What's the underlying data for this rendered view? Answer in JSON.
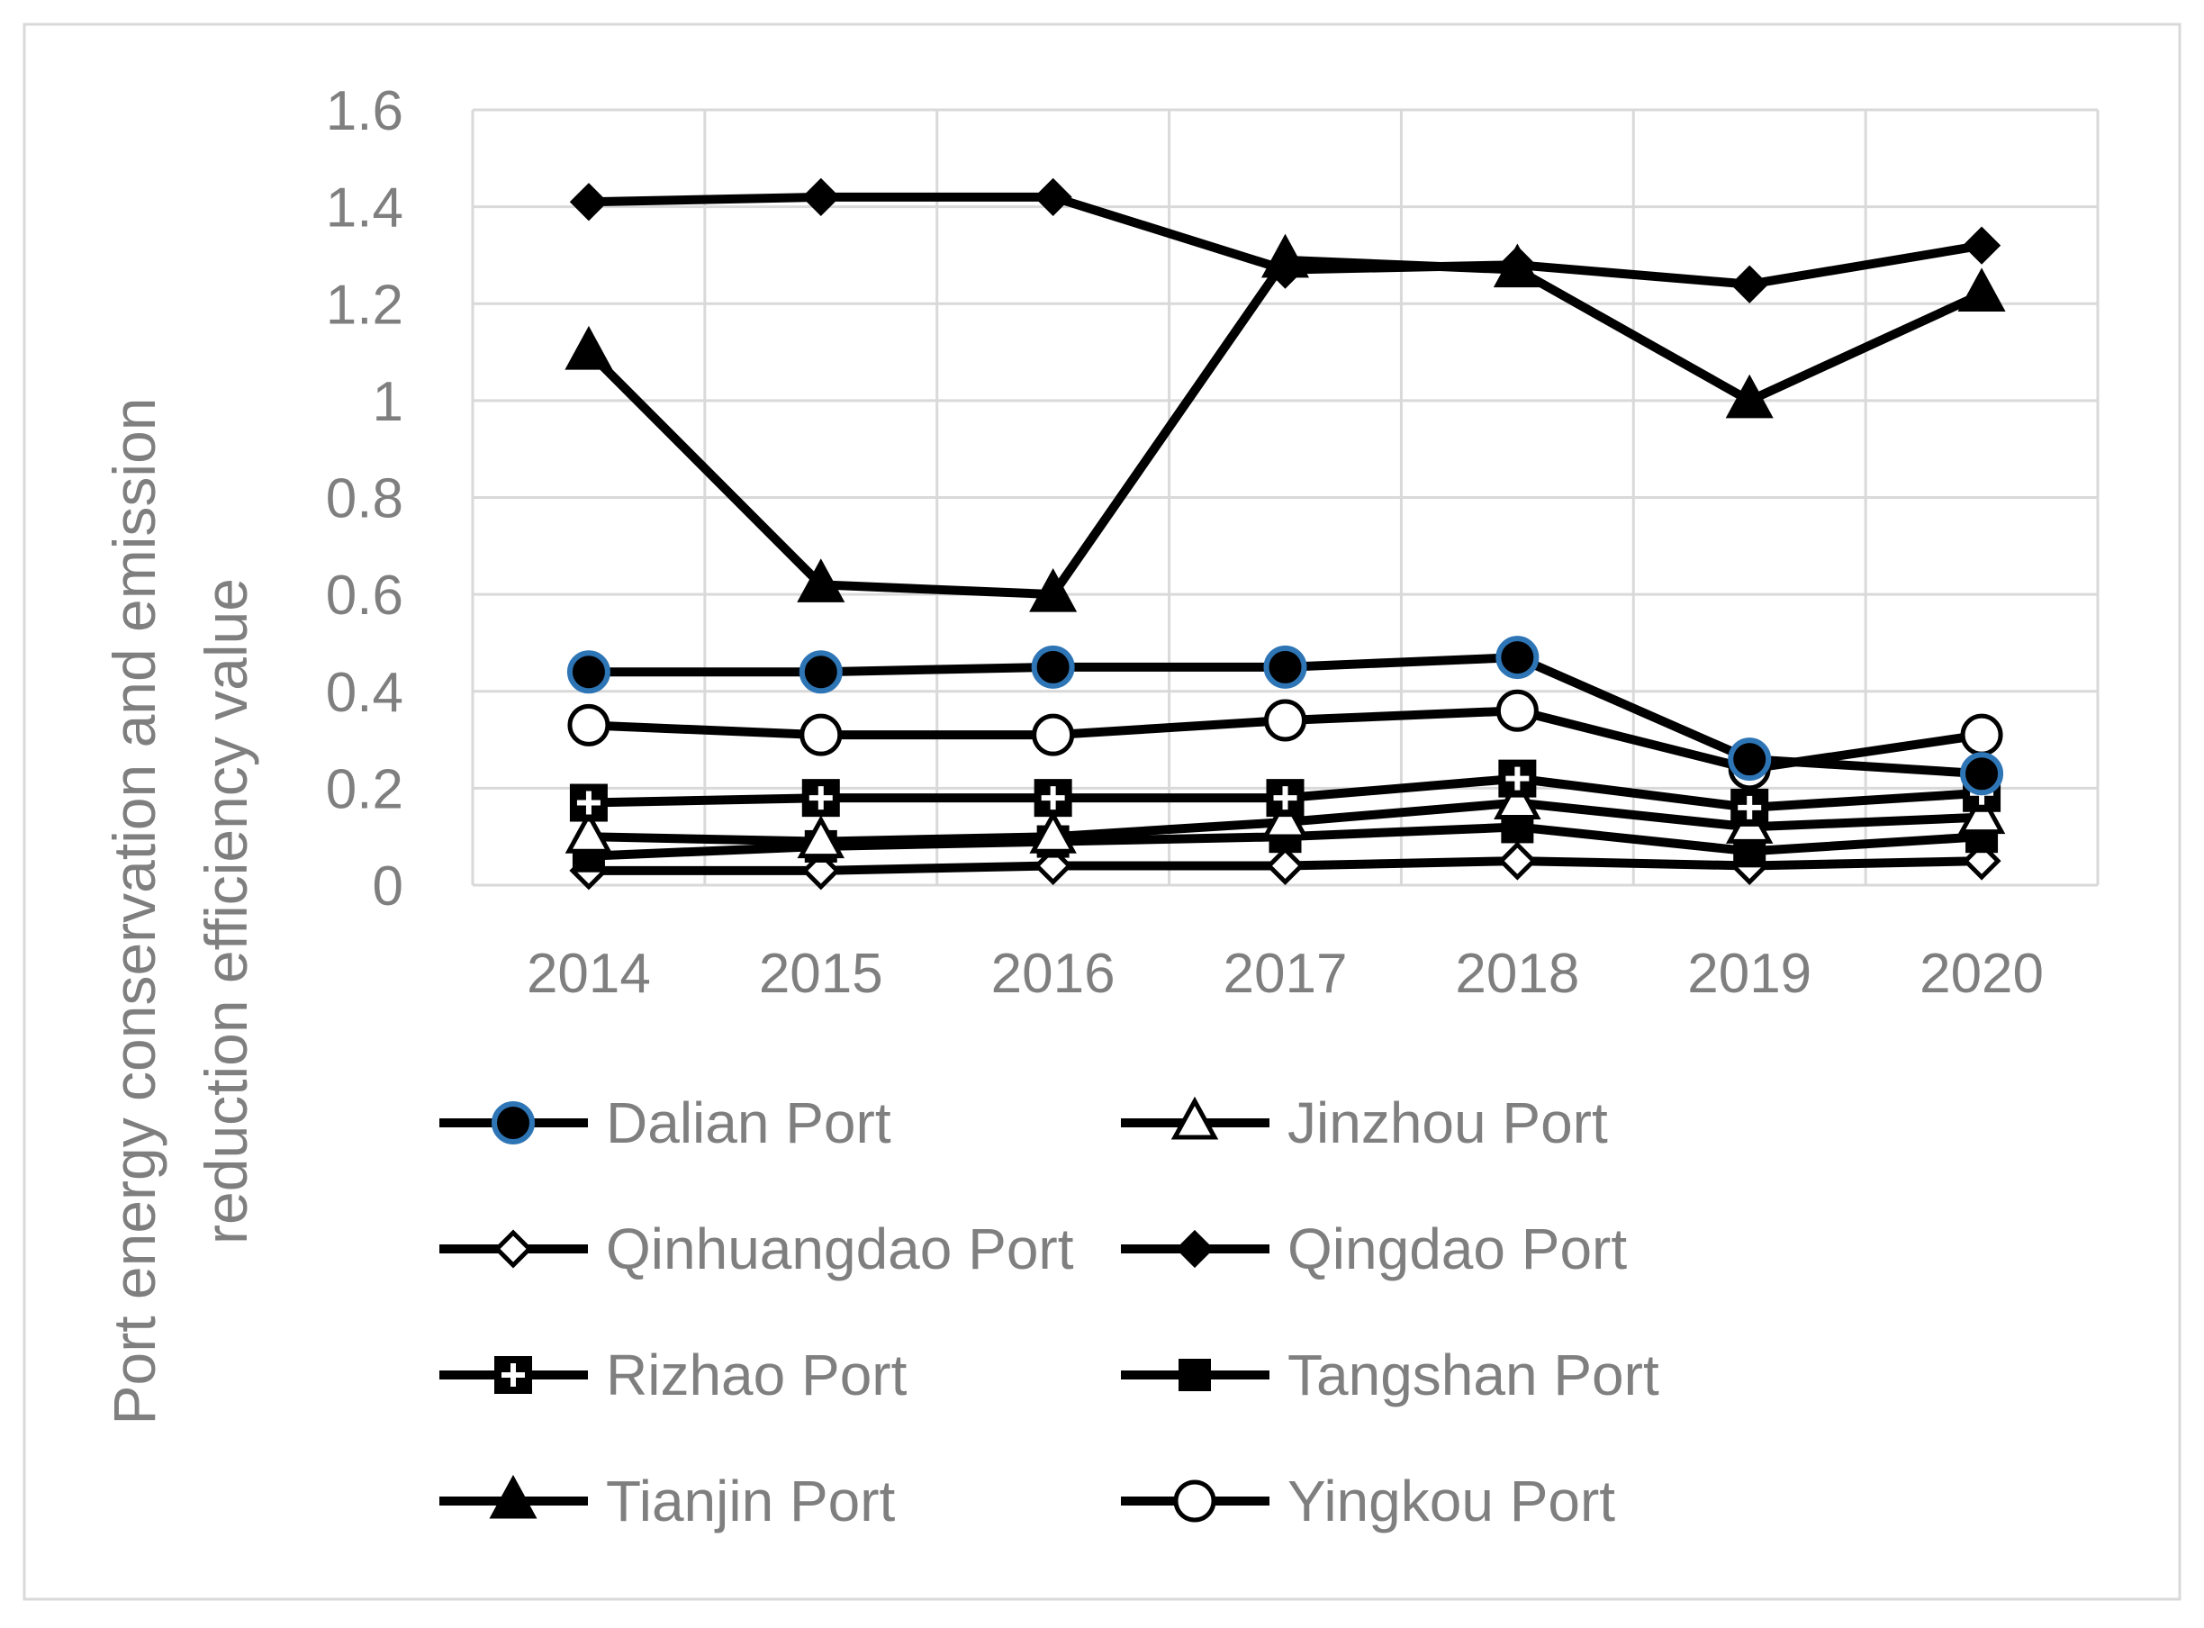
{
  "chart_data": {
    "type": "line",
    "title": "",
    "xlabel": "",
    "ylabel_lines": [
      "Port energy conservation and emission",
      "reduction efficiency value"
    ],
    "categories": [
      "2014",
      "2015",
      "2016",
      "2017",
      "2018",
      "2019",
      "2020"
    ],
    "y_ticks": [
      "0",
      "0.2",
      "0.4",
      "0.6",
      "0.8",
      "1",
      "1.2",
      "1.4",
      "1.6"
    ],
    "ylim": [
      0,
      1.6
    ],
    "grid": true,
    "legend_position": "bottom",
    "series": [
      {
        "name": "Dalian Port",
        "marker": "circle-filled-blue",
        "values": [
          0.44,
          0.44,
          0.45,
          0.45,
          0.47,
          0.26,
          0.23
        ]
      },
      {
        "name": "Jinzhou Port",
        "marker": "triangle-open",
        "values": [
          0.1,
          0.09,
          0.1,
          0.13,
          0.17,
          0.12,
          0.14
        ]
      },
      {
        "name": "Qinhuangdao Port",
        "marker": "diamond-open",
        "values": [
          0.03,
          0.03,
          0.04,
          0.04,
          0.05,
          0.04,
          0.05
        ]
      },
      {
        "name": "Qingdao Port",
        "marker": "diamond-filled",
        "values": [
          1.41,
          1.42,
          1.42,
          1.27,
          1.28,
          1.24,
          1.32
        ]
      },
      {
        "name": "Rizhao Port",
        "marker": "square-plus",
        "values": [
          0.17,
          0.18,
          0.18,
          0.18,
          0.22,
          0.16,
          0.19
        ]
      },
      {
        "name": "Tangshan Port",
        "marker": "square-filled",
        "values": [
          0.06,
          0.08,
          0.09,
          0.1,
          0.12,
          0.07,
          0.1
        ]
      },
      {
        "name": "Tianjin Port",
        "marker": "triangle-filled",
        "values": [
          1.1,
          0.62,
          0.6,
          1.29,
          1.27,
          1.0,
          1.22
        ]
      },
      {
        "name": "Yingkou Port",
        "marker": "circle-open",
        "values": [
          0.33,
          0.31,
          0.31,
          0.34,
          0.36,
          0.24,
          0.31
        ]
      }
    ],
    "colors": {
      "line": "#000000",
      "grid": "#d9d9d9",
      "axis_text": "#7f7f7f",
      "dalian_marker_edge": "#2e75b6",
      "frame": "#d9d9d9"
    }
  }
}
